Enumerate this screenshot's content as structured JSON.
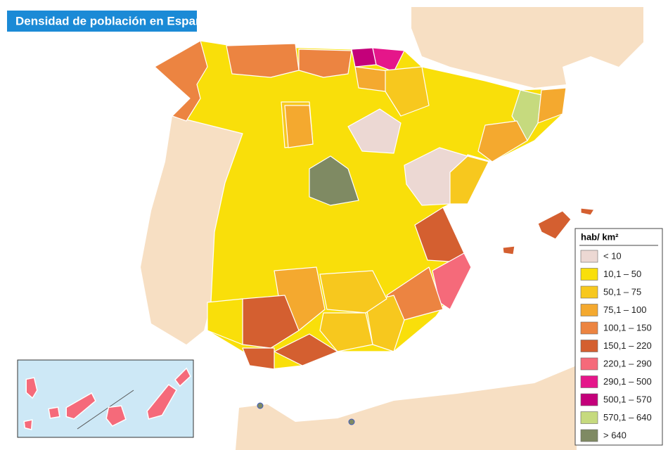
{
  "title": "Densidad de población en España",
  "legend": {
    "title": "hab/ km²",
    "items": [
      {
        "label": "< 10",
        "color": "#ecd8d3"
      },
      {
        "label": "10,1 – 50",
        "color": "#f9df0a"
      },
      {
        "label": "50,1 – 75",
        "color": "#f7c81e"
      },
      {
        "label": "75,1 – 100",
        "color": "#f4a92f"
      },
      {
        "label": "100,1 – 150",
        "color": "#ec8441"
      },
      {
        "label": "150,1 – 220",
        "color": "#d45f30"
      },
      {
        "label": "220,1 – 290",
        "color": "#f56a7a"
      },
      {
        "label": "290,1 – 500",
        "color": "#e5168a"
      },
      {
        "label": "500,1 – 570",
        "color": "#c4007a"
      },
      {
        "label": "570,1 – 640",
        "color": "#c6da7e"
      },
      {
        "label": "> 640",
        "color": "#7f8a63"
      }
    ]
  }
}
